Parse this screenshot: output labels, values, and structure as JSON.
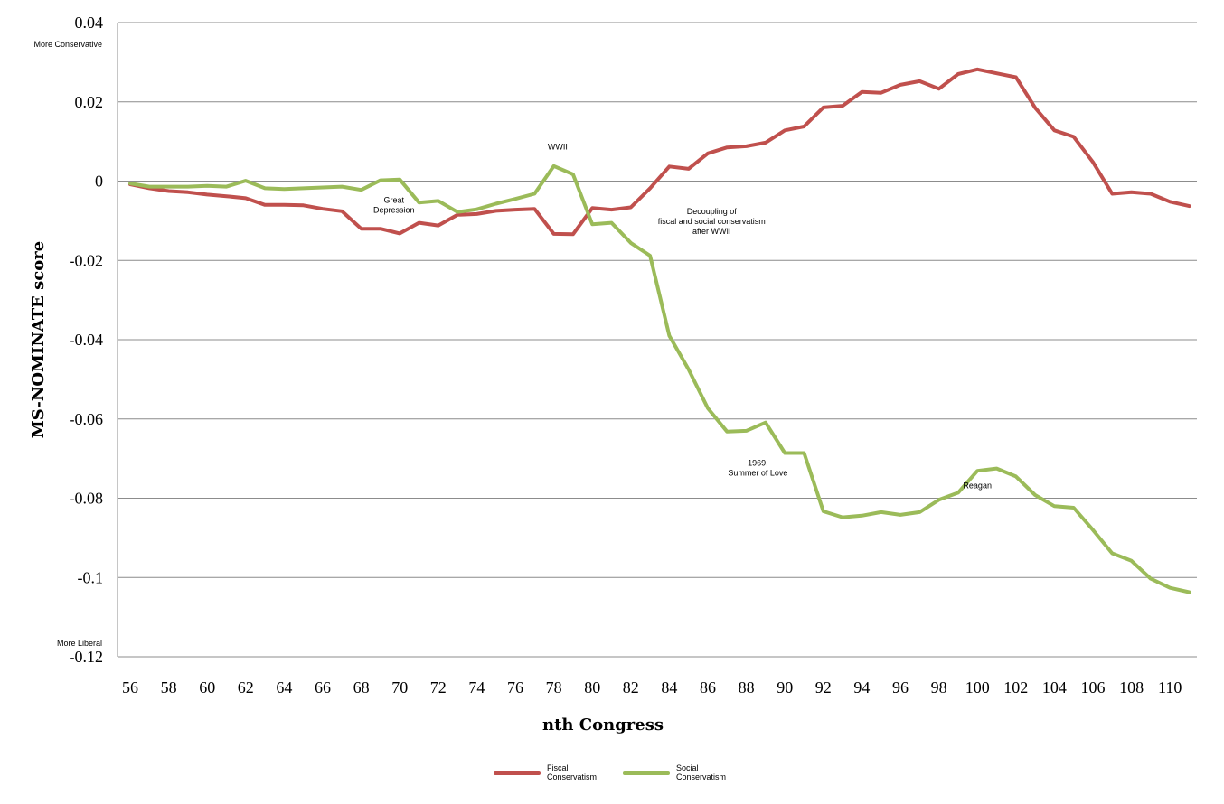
{
  "chart_data": {
    "type": "line",
    "xlabel": "nth Congress",
    "ylabel": "MS-NOMINATE score",
    "ylim": [
      -0.12,
      0.04
    ],
    "xlim": [
      56,
      111
    ],
    "grid": true,
    "legend_position": "bottom",
    "y_ticks": [
      "0.04",
      "0.02",
      "0",
      "-0.02",
      "-0.04",
      "-0.06",
      "-0.08",
      "-0.1",
      "-0.12"
    ],
    "x_ticks": [
      "56",
      "58",
      "60",
      "62",
      "64",
      "66",
      "68",
      "70",
      "72",
      "74",
      "76",
      "78",
      "80",
      "82",
      "84",
      "86",
      "88",
      "90",
      "92",
      "94",
      "96",
      "98",
      "100",
      "102",
      "104",
      "106",
      "108",
      "110"
    ],
    "y_top_note": "More Conservative",
    "y_bottom_note": "More Liberal",
    "x": [
      56,
      57,
      58,
      59,
      60,
      61,
      62,
      63,
      64,
      65,
      66,
      67,
      68,
      69,
      70,
      71,
      72,
      73,
      74,
      75,
      76,
      77,
      78,
      79,
      80,
      81,
      82,
      83,
      84,
      85,
      86,
      87,
      88,
      89,
      90,
      91,
      92,
      93,
      94,
      95,
      96,
      97,
      98,
      99,
      100,
      101,
      102,
      103,
      104,
      105,
      106,
      107,
      108,
      109,
      110,
      111
    ],
    "series": [
      {
        "name": "Fiscal Conservatism",
        "color": "#c0504d",
        "values": [
          -0.0008,
          -0.0018,
          -0.0025,
          -0.0028,
          -0.0034,
          -0.0038,
          -0.0043,
          -0.006,
          -0.006,
          -0.0061,
          -0.007,
          -0.0076,
          -0.012,
          -0.012,
          -0.0132,
          -0.0105,
          -0.0112,
          -0.0085,
          -0.0083,
          -0.0075,
          -0.0072,
          -0.007,
          -0.0133,
          -0.0134,
          -0.0068,
          -0.0072,
          -0.0066,
          -0.0018,
          0.0037,
          0.0031,
          0.007,
          0.0085,
          0.0088,
          0.0097,
          0.0128,
          0.0138,
          0.0186,
          0.019,
          0.0225,
          0.0223,
          0.0243,
          0.0252,
          0.0233,
          0.027,
          0.0282,
          0.0272,
          0.0262,
          0.0185,
          0.0128,
          0.0112,
          0.0048,
          -0.0032,
          -0.0028,
          -0.0032,
          -0.0052,
          -0.0063
        ]
      },
      {
        "name": "Social Conservatism",
        "color": "#9bbb59",
        "values": [
          -0.0006,
          -0.0014,
          -0.0014,
          -0.0014,
          -0.0012,
          -0.0014,
          0.0001,
          -0.0018,
          -0.002,
          -0.0018,
          -0.0016,
          -0.0014,
          -0.0022,
          0.0002,
          0.0004,
          -0.0054,
          -0.005,
          -0.0078,
          -0.0071,
          -0.0057,
          -0.0045,
          -0.0032,
          0.0038,
          0.0017,
          -0.0109,
          -0.0105,
          -0.0156,
          -0.0188,
          -0.039,
          -0.0475,
          -0.0573,
          -0.0632,
          -0.063,
          -0.0609,
          -0.0686,
          -0.0686,
          -0.0833,
          -0.0848,
          -0.0844,
          -0.0835,
          -0.0842,
          -0.0835,
          -0.0804,
          -0.0786,
          -0.0731,
          -0.0725,
          -0.0745,
          -0.0792,
          -0.082,
          -0.0824,
          -0.088,
          -0.0939,
          -0.0958,
          -0.1003,
          -0.1026,
          -0.1037
        ]
      }
    ],
    "annotations": [
      {
        "lines": [
          "WWII"
        ],
        "x": 78.2,
        "y": 0.008
      },
      {
        "lines": [
          "Great",
          "Depression"
        ],
        "x": 69.7,
        "y": -0.0055
      },
      {
        "lines": [
          "Decoupling of",
          "fiscal and social conservatism",
          "after WWII"
        ],
        "x": 86.2,
        "y": -0.0083
      },
      {
        "lines": [
          "1969,",
          "Summer of Love"
        ],
        "x": 88.6,
        "y": -0.0718
      },
      {
        "lines": [
          "Reagan"
        ],
        "x": 100.0,
        "y": -0.0775
      }
    ]
  }
}
